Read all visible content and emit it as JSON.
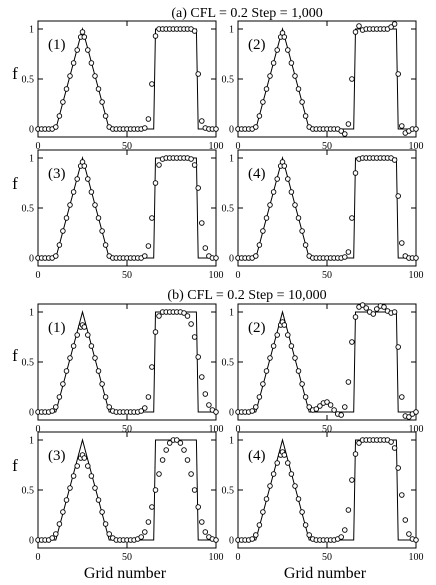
{
  "figure": {
    "section_a_title": "(a) CFL = 0.2   Step = 1,000",
    "section_b_title": "(b) CFL = 0.2   Step = 10,000",
    "y_axis_symbol": "f",
    "x_axis_title": "Grid number"
  },
  "chart_data": [
    {
      "type": "line+scatter",
      "section": "a",
      "label": "(1)",
      "xlim": [
        0,
        100
      ],
      "ylim": [
        0,
        1
      ],
      "xticks": [
        0,
        50,
        100
      ],
      "yticks": [
        0,
        0.5,
        1
      ],
      "exact": {
        "name": "",
        "x": [
          0,
          10,
          25,
          40,
          65,
          66,
          89,
          90,
          100
        ],
        "y": [
          0,
          0,
          1,
          0,
          0,
          1,
          1,
          0,
          0
        ]
      },
      "numerical": {
        "name": "",
        "x": [
          0,
          2,
          4,
          6,
          8,
          10,
          12,
          14,
          16,
          18,
          20,
          22,
          24,
          25,
          26,
          28,
          30,
          32,
          34,
          36,
          38,
          40,
          42,
          44,
          46,
          48,
          50,
          52,
          54,
          56,
          58,
          60,
          62,
          64,
          66,
          68,
          70,
          72,
          74,
          76,
          78,
          80,
          82,
          84,
          86,
          88,
          90,
          92,
          94,
          96,
          98,
          100
        ],
        "y": [
          0,
          0,
          0,
          0,
          0,
          0.02,
          0.13,
          0.27,
          0.4,
          0.53,
          0.66,
          0.79,
          0.92,
          0.97,
          0.92,
          0.79,
          0.66,
          0.53,
          0.4,
          0.27,
          0.13,
          0.02,
          0,
          0,
          0,
          0,
          0,
          0,
          0,
          0,
          0,
          0.01,
          0.1,
          0.45,
          0.93,
          1.0,
          1.0,
          1.0,
          1.0,
          1.0,
          1.0,
          1.0,
          1.0,
          1.0,
          1.0,
          0.98,
          0.55,
          0.08,
          0.01,
          0,
          0,
          0
        ]
      }
    },
    {
      "type": "line+scatter",
      "section": "a",
      "label": "(2)",
      "xlim": [
        0,
        100
      ],
      "ylim": [
        0,
        1
      ],
      "xticks": [
        0,
        50,
        100
      ],
      "yticks": [
        0,
        0.5,
        1
      ],
      "exact": {
        "name": "",
        "x": [
          0,
          10,
          25,
          40,
          65,
          66,
          89,
          90,
          100
        ],
        "y": [
          0,
          0,
          1,
          0,
          0,
          1,
          1,
          0,
          0
        ]
      },
      "numerical": {
        "name": "",
        "x": [
          0,
          2,
          4,
          6,
          8,
          10,
          12,
          14,
          16,
          18,
          20,
          22,
          24,
          25,
          26,
          28,
          30,
          32,
          34,
          36,
          38,
          40,
          42,
          44,
          46,
          48,
          50,
          52,
          54,
          56,
          58,
          60,
          62,
          64,
          66,
          68,
          70,
          72,
          74,
          76,
          78,
          80,
          82,
          84,
          86,
          88,
          90,
          92,
          94,
          96,
          98,
          100
        ],
        "y": [
          0,
          0,
          0,
          0,
          0,
          0.02,
          0.13,
          0.27,
          0.4,
          0.53,
          0.66,
          0.79,
          0.92,
          0.96,
          0.92,
          0.79,
          0.66,
          0.53,
          0.4,
          0.27,
          0.13,
          0.02,
          0,
          0,
          0,
          0,
          0,
          0,
          0,
          0,
          -0.02,
          -0.05,
          0.05,
          0.5,
          0.97,
          1.03,
          0.99,
          1.0,
          1.0,
          1.0,
          1.0,
          1.0,
          1.0,
          1.0,
          1.02,
          1.05,
          0.55,
          0.03,
          -0.04,
          -0.02,
          0,
          0
        ]
      }
    },
    {
      "type": "line+scatter",
      "section": "a",
      "label": "(3)",
      "xlim": [
        0,
        100
      ],
      "ylim": [
        0,
        1
      ],
      "xticks": [
        0,
        50,
        100
      ],
      "yticks": [
        0,
        0.5,
        1
      ],
      "exact": {
        "name": "",
        "x": [
          0,
          10,
          25,
          40,
          65,
          66,
          89,
          90,
          100
        ],
        "y": [
          0,
          0,
          1,
          0,
          0,
          1,
          1,
          0,
          0
        ]
      },
      "numerical": {
        "name": "",
        "x": [
          0,
          2,
          4,
          6,
          8,
          10,
          12,
          14,
          16,
          18,
          20,
          22,
          24,
          25,
          26,
          28,
          30,
          32,
          34,
          36,
          38,
          40,
          42,
          44,
          46,
          48,
          50,
          52,
          54,
          56,
          58,
          60,
          62,
          64,
          66,
          68,
          70,
          72,
          74,
          76,
          78,
          80,
          82,
          84,
          86,
          88,
          90,
          92,
          94,
          96,
          98,
          100
        ],
        "y": [
          0,
          0,
          0,
          0,
          0,
          0.02,
          0.13,
          0.27,
          0.4,
          0.53,
          0.66,
          0.79,
          0.92,
          0.96,
          0.92,
          0.79,
          0.66,
          0.53,
          0.4,
          0.27,
          0.13,
          0.02,
          0,
          0,
          0,
          0,
          0,
          0,
          0,
          0,
          0,
          0.02,
          0.12,
          0.4,
          0.75,
          0.93,
          0.99,
          1.0,
          1.0,
          1.0,
          1.0,
          1.0,
          1.0,
          1.0,
          0.99,
          0.93,
          0.7,
          0.35,
          0.1,
          0.02,
          0,
          0
        ]
      }
    },
    {
      "type": "line+scatter",
      "section": "a",
      "label": "(4)",
      "xlim": [
        0,
        100
      ],
      "ylim": [
        0,
        1
      ],
      "xticks": [
        0,
        50,
        100
      ],
      "yticks": [
        0,
        0.5,
        1
      ],
      "exact": {
        "name": "",
        "x": [
          0,
          10,
          25,
          40,
          65,
          66,
          89,
          90,
          100
        ],
        "y": [
          0,
          0,
          1,
          0,
          0,
          1,
          1,
          0,
          0
        ]
      },
      "numerical": {
        "name": "",
        "x": [
          0,
          2,
          4,
          6,
          8,
          10,
          12,
          14,
          16,
          18,
          20,
          22,
          24,
          25,
          26,
          28,
          30,
          32,
          34,
          36,
          38,
          40,
          42,
          44,
          46,
          48,
          50,
          52,
          54,
          56,
          58,
          60,
          62,
          64,
          66,
          68,
          70,
          72,
          74,
          76,
          78,
          80,
          82,
          84,
          86,
          88,
          90,
          92,
          94,
          96,
          98,
          100
        ],
        "y": [
          0,
          0,
          0,
          0,
          0,
          0.02,
          0.13,
          0.27,
          0.4,
          0.53,
          0.66,
          0.79,
          0.92,
          0.96,
          0.92,
          0.79,
          0.66,
          0.53,
          0.4,
          0.27,
          0.13,
          0.02,
          0,
          0,
          0,
          0,
          0,
          0,
          0,
          0,
          0,
          0.01,
          0.06,
          0.4,
          0.85,
          0.99,
          1.0,
          1.0,
          1.0,
          1.0,
          1.0,
          1.0,
          1.0,
          1.0,
          1.0,
          0.98,
          0.62,
          0.15,
          0.02,
          0,
          0,
          0
        ]
      }
    },
    {
      "type": "line+scatter",
      "section": "b",
      "label": "(1)",
      "xlim": [
        0,
        100
      ],
      "ylim": [
        0,
        1
      ],
      "xticks": [
        0,
        50,
        100
      ],
      "yticks": [
        0,
        0.5,
        1
      ],
      "exact": {
        "name": "",
        "x": [
          0,
          10,
          25,
          40,
          65,
          66,
          89,
          90,
          100
        ],
        "y": [
          0,
          0,
          1,
          0,
          0,
          1,
          1,
          0,
          0
        ]
      },
      "numerical": {
        "name": "",
        "x": [
          0,
          2,
          4,
          6,
          8,
          10,
          12,
          14,
          16,
          18,
          20,
          22,
          24,
          25,
          26,
          28,
          30,
          32,
          34,
          36,
          38,
          40,
          42,
          44,
          46,
          48,
          50,
          52,
          54,
          56,
          58,
          60,
          62,
          64,
          66,
          68,
          70,
          72,
          74,
          76,
          78,
          80,
          82,
          84,
          86,
          88,
          90,
          92,
          94,
          96,
          98,
          100
        ],
        "y": [
          0,
          0,
          0,
          0,
          0.01,
          0.05,
          0.15,
          0.28,
          0.41,
          0.54,
          0.66,
          0.77,
          0.85,
          0.87,
          0.85,
          0.77,
          0.66,
          0.54,
          0.41,
          0.28,
          0.15,
          0.05,
          0.01,
          0,
          0,
          0,
          0,
          0,
          0,
          0,
          0.01,
          0.04,
          0.15,
          0.45,
          0.8,
          0.96,
          1.0,
          1.0,
          1.0,
          1.0,
          1.0,
          1.0,
          0.99,
          0.96,
          0.88,
          0.75,
          0.55,
          0.35,
          0.18,
          0.07,
          0.02,
          0
        ]
      }
    },
    {
      "type": "line+scatter",
      "section": "b",
      "label": "(2)",
      "xlim": [
        0,
        100
      ],
      "ylim": [
        0,
        1
      ],
      "xticks": [
        0,
        50,
        100
      ],
      "yticks": [
        0,
        0.5,
        1
      ],
      "exact": {
        "name": "",
        "x": [
          0,
          10,
          25,
          40,
          65,
          66,
          89,
          90,
          100
        ],
        "y": [
          0,
          0,
          1,
          0,
          0,
          1,
          1,
          0,
          0
        ]
      },
      "numerical": {
        "name": "",
        "x": [
          0,
          2,
          4,
          6,
          8,
          10,
          12,
          14,
          16,
          18,
          20,
          22,
          24,
          25,
          26,
          28,
          30,
          32,
          34,
          36,
          38,
          40,
          42,
          44,
          46,
          48,
          50,
          52,
          54,
          56,
          58,
          60,
          62,
          64,
          66,
          68,
          70,
          72,
          74,
          76,
          78,
          80,
          82,
          84,
          86,
          88,
          90,
          92,
          94,
          96,
          98,
          100
        ],
        "y": [
          0,
          0,
          0,
          0,
          0.01,
          0.05,
          0.15,
          0.28,
          0.41,
          0.54,
          0.66,
          0.77,
          0.87,
          0.9,
          0.87,
          0.77,
          0.66,
          0.54,
          0.41,
          0.28,
          0.15,
          0.05,
          0.02,
          0.03,
          0.06,
          0.09,
          0.1,
          0.07,
          0.02,
          -0.02,
          -0.03,
          0.05,
          0.3,
          0.7,
          0.95,
          1.05,
          1.07,
          1.04,
          1.0,
          0.98,
          1.03,
          1.06,
          1.05,
          1.01,
          0.99,
          1.0,
          0.65,
          0.15,
          -0.04,
          -0.05,
          -0.02,
          0
        ]
      }
    },
    {
      "type": "line+scatter",
      "section": "b",
      "label": "(3)",
      "xlim": [
        0,
        100
      ],
      "ylim": [
        0,
        1
      ],
      "xticks": [
        0,
        50,
        100
      ],
      "yticks": [
        0,
        0.5,
        1
      ],
      "exact": {
        "name": "",
        "x": [
          0,
          10,
          25,
          40,
          65,
          66,
          89,
          90,
          100
        ],
        "y": [
          0,
          0,
          1,
          0,
          0,
          1,
          1,
          0,
          0
        ]
      },
      "numerical": {
        "name": "",
        "x": [
          0,
          2,
          4,
          6,
          8,
          10,
          12,
          14,
          16,
          18,
          20,
          22,
          24,
          25,
          26,
          28,
          30,
          32,
          34,
          36,
          38,
          40,
          42,
          44,
          46,
          48,
          50,
          52,
          54,
          56,
          58,
          60,
          62,
          64,
          66,
          68,
          70,
          72,
          74,
          76,
          78,
          80,
          82,
          84,
          86,
          88,
          90,
          92,
          94,
          96,
          98,
          100
        ],
        "y": [
          0,
          0,
          0,
          0,
          0.02,
          0.06,
          0.16,
          0.28,
          0.4,
          0.52,
          0.64,
          0.74,
          0.82,
          0.85,
          0.82,
          0.74,
          0.64,
          0.52,
          0.4,
          0.28,
          0.16,
          0.06,
          0.02,
          0,
          0,
          0,
          0,
          0,
          0,
          0.01,
          0.03,
          0.08,
          0.18,
          0.33,
          0.5,
          0.66,
          0.8,
          0.9,
          0.97,
          1.0,
          1.0,
          0.97,
          0.9,
          0.8,
          0.66,
          0.5,
          0.33,
          0.18,
          0.08,
          0.03,
          0.01,
          0
        ]
      }
    },
    {
      "type": "line+scatter",
      "section": "b",
      "label": "(4)",
      "xlim": [
        0,
        100
      ],
      "ylim": [
        0,
        1
      ],
      "xticks": [
        0,
        50,
        100
      ],
      "yticks": [
        0,
        0.5,
        1
      ],
      "exact": {
        "name": "",
        "x": [
          0,
          10,
          25,
          40,
          65,
          66,
          89,
          90,
          100
        ],
        "y": [
          0,
          0,
          1,
          0,
          0,
          1,
          1,
          0,
          0
        ]
      },
      "numerical": {
        "name": "",
        "x": [
          0,
          2,
          4,
          6,
          8,
          10,
          12,
          14,
          16,
          18,
          20,
          22,
          24,
          25,
          26,
          28,
          30,
          32,
          34,
          36,
          38,
          40,
          42,
          44,
          46,
          48,
          50,
          52,
          54,
          56,
          58,
          60,
          62,
          64,
          66,
          68,
          70,
          72,
          74,
          76,
          78,
          80,
          82,
          84,
          86,
          88,
          90,
          92,
          94,
          96,
          98,
          100
        ],
        "y": [
          0,
          0,
          0,
          0,
          0.01,
          0.05,
          0.15,
          0.28,
          0.41,
          0.54,
          0.66,
          0.77,
          0.85,
          0.88,
          0.85,
          0.77,
          0.66,
          0.54,
          0.41,
          0.28,
          0.15,
          0.05,
          0.01,
          0,
          0,
          0,
          0,
          0,
          0,
          0.01,
          0.03,
          0.1,
          0.3,
          0.6,
          0.86,
          0.97,
          1.0,
          1.0,
          1.0,
          1.0,
          1.0,
          1.0,
          1.0,
          1.0,
          0.98,
          0.92,
          0.72,
          0.45,
          0.2,
          0.06,
          0.01,
          0
        ]
      }
    }
  ]
}
